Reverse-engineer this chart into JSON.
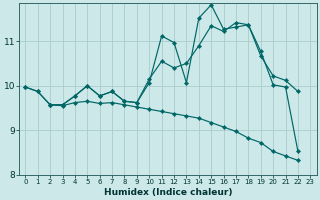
{
  "xlabel": "Humidex (Indice chaleur)",
  "bg_color": "#cce8e8",
  "line_color": "#006666",
  "grid_color": "#aacccc",
  "xlim": [
    -0.5,
    23.5
  ],
  "ylim": [
    8.0,
    11.85
  ],
  "yticks": [
    8,
    9,
    10,
    11
  ],
  "xticks": [
    0,
    1,
    2,
    3,
    4,
    5,
    6,
    7,
    8,
    9,
    10,
    11,
    12,
    13,
    14,
    15,
    16,
    17,
    18,
    19,
    20,
    21,
    22,
    23
  ],
  "lines": [
    {
      "x": [
        0,
        1,
        2,
        3,
        4,
        5,
        6,
        7,
        8,
        9,
        10,
        11,
        12,
        13,
        14,
        15,
        16,
        17,
        18,
        19,
        20,
        21,
        22
      ],
      "y": [
        9.97,
        9.87,
        9.57,
        9.57,
        9.77,
        10.0,
        9.77,
        9.87,
        9.65,
        9.62,
        10.07,
        11.12,
        10.97,
        10.07,
        11.52,
        11.82,
        11.27,
        11.32,
        11.37,
        10.77,
        10.02,
        9.97,
        8.52
      ]
    },
    {
      "x": [
        2,
        3,
        4,
        5,
        6,
        7,
        8,
        9,
        10,
        11,
        12,
        13,
        14,
        15,
        16,
        17,
        18,
        19,
        20,
        21,
        22
      ],
      "y": [
        9.57,
        9.57,
        9.77,
        10.0,
        9.77,
        9.87,
        9.65,
        9.62,
        10.15,
        10.55,
        10.4,
        10.5,
        10.9,
        11.35,
        11.22,
        11.42,
        11.37,
        10.67,
        10.22,
        10.12,
        9.87
      ]
    },
    {
      "x": [
        0,
        1,
        2,
        3,
        4,
        5,
        6,
        7,
        8,
        9,
        10,
        11,
        12,
        13,
        14,
        15,
        16,
        17,
        18,
        19,
        20,
        21,
        22
      ],
      "y": [
        9.97,
        9.87,
        9.57,
        9.55,
        9.62,
        9.65,
        9.6,
        9.62,
        9.57,
        9.52,
        9.47,
        9.42,
        9.37,
        9.32,
        9.27,
        9.17,
        9.07,
        8.97,
        8.82,
        8.72,
        8.52,
        8.42,
        8.32
      ]
    }
  ]
}
